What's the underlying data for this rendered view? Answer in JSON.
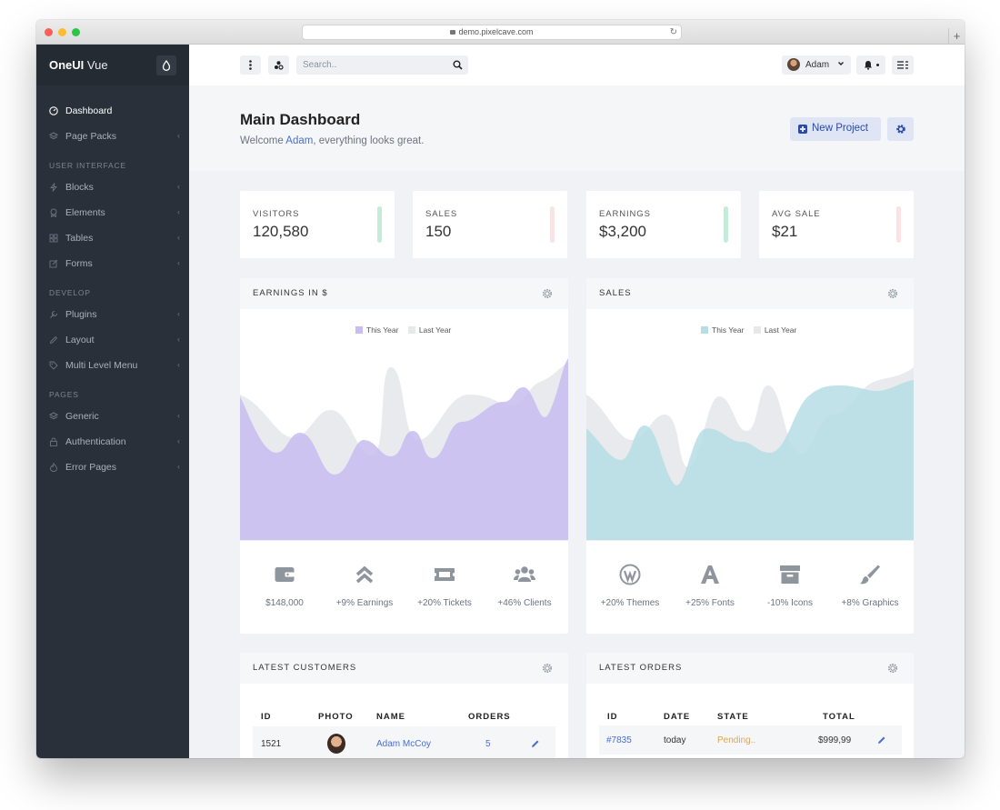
{
  "browser": {
    "url": "demo.pixelcave.com"
  },
  "brand": {
    "bold": "OneUI",
    "light": "Vue"
  },
  "sidebar": {
    "items": [
      {
        "label": "Dashboard",
        "icon": "speedometer-icon",
        "active": true
      },
      {
        "label": "Page Packs",
        "icon": "layers-icon"
      },
      {
        "heading": "USER INTERFACE"
      },
      {
        "label": "Blocks",
        "icon": "bolt-icon"
      },
      {
        "label": "Elements",
        "icon": "badge-icon"
      },
      {
        "label": "Tables",
        "icon": "grid-icon"
      },
      {
        "label": "Forms",
        "icon": "edit-icon"
      },
      {
        "heading": "DEVELOP"
      },
      {
        "label": "Plugins",
        "icon": "wrench-icon"
      },
      {
        "label": "Layout",
        "icon": "pencil-icon"
      },
      {
        "label": "Multi Level Menu",
        "icon": "tag-icon"
      },
      {
        "heading": "PAGES"
      },
      {
        "label": "Generic",
        "icon": "layers-icon"
      },
      {
        "label": "Authentication",
        "icon": "lock-icon"
      },
      {
        "label": "Error Pages",
        "icon": "fire-icon"
      }
    ]
  },
  "topbar": {
    "search_placeholder": "Search..",
    "user_name": "Adam"
  },
  "hero": {
    "title": "Main Dashboard",
    "welcome_before": "Welcome ",
    "welcome_name": "Adam",
    "welcome_after": ", everything looks great.",
    "new_project": "New Project"
  },
  "stats": [
    {
      "label": "VISITORS",
      "value": "120,580",
      "color": "#c5ecd9"
    },
    {
      "label": "SALES",
      "value": "150",
      "color": "#fbe3e3"
    },
    {
      "label": "EARNINGS",
      "value": "$3,200",
      "color": "#c5ecd9"
    },
    {
      "label": "AVG SALE",
      "value": "$21",
      "color": "#fbe3e3"
    }
  ],
  "earnings_card": {
    "title": "EARNINGS IN $",
    "legend_this": "This Year",
    "legend_last": "Last Year",
    "this_color": "#c7bdf0",
    "last_color": "#e6e8eb",
    "metrics": [
      {
        "icon": "wallet-icon",
        "label": "$148,000"
      },
      {
        "icon": "double-chevron-up-icon",
        "label": "+9% Earnings"
      },
      {
        "icon": "ticket-icon",
        "label": "+20% Tickets"
      },
      {
        "icon": "users-icon",
        "label": "+46% Clients"
      }
    ]
  },
  "sales_card": {
    "title": "SALES",
    "legend_this": "This Year",
    "legend_last": "Last Year",
    "this_color": "#b6dde4",
    "last_color": "#e6e8eb",
    "metrics": [
      {
        "icon": "wordpress-icon",
        "label": "+20% Themes"
      },
      {
        "icon": "font-icon",
        "label": "+25% Fonts"
      },
      {
        "icon": "archive-icon",
        "label": "-10% Icons"
      },
      {
        "icon": "paint-brush-icon",
        "label": "+8% Graphics"
      }
    ]
  },
  "customers_card": {
    "title": "LATEST CUSTOMERS",
    "columns": [
      "ID",
      "PHOTO",
      "NAME",
      "ORDERS"
    ],
    "rows": [
      {
        "id": "1521",
        "name": "Adam McCoy",
        "orders": "5"
      }
    ]
  },
  "orders_card": {
    "title": "LATEST ORDERS",
    "columns": [
      "ID",
      "DATE",
      "STATE",
      "TOTAL"
    ],
    "rows": [
      {
        "id": "#7835",
        "date": "today",
        "state": "Pending..",
        "total": "$999,99"
      }
    ]
  }
}
